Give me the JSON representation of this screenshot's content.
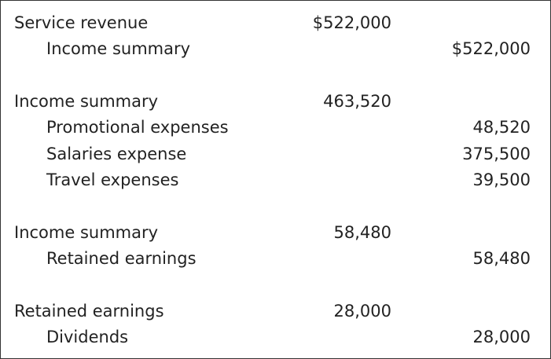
{
  "entries": [
    {
      "lines": [
        {
          "account": "Service revenue",
          "debit": "$522,000",
          "credit": ""
        },
        {
          "account": "Income summary",
          "debit": "",
          "credit": "$522,000"
        }
      ]
    },
    {
      "lines": [
        {
          "account": "Income summary",
          "debit": "463,520",
          "credit": ""
        },
        {
          "account": "Promotional expenses",
          "debit": "",
          "credit": "48,520"
        },
        {
          "account": "Salaries expense",
          "debit": "",
          "credit": "375,500"
        },
        {
          "account": "Travel expenses",
          "debit": "",
          "credit": "39,500"
        }
      ]
    },
    {
      "lines": [
        {
          "account": "Income summary",
          "debit": "58,480",
          "credit": ""
        },
        {
          "account": "Retained earnings",
          "debit": "",
          "credit": "58,480"
        }
      ]
    },
    {
      "lines": [
        {
          "account": "Retained earnings",
          "debit": "28,000",
          "credit": ""
        },
        {
          "account": "Dividends",
          "debit": "",
          "credit": "28,000"
        }
      ]
    }
  ]
}
